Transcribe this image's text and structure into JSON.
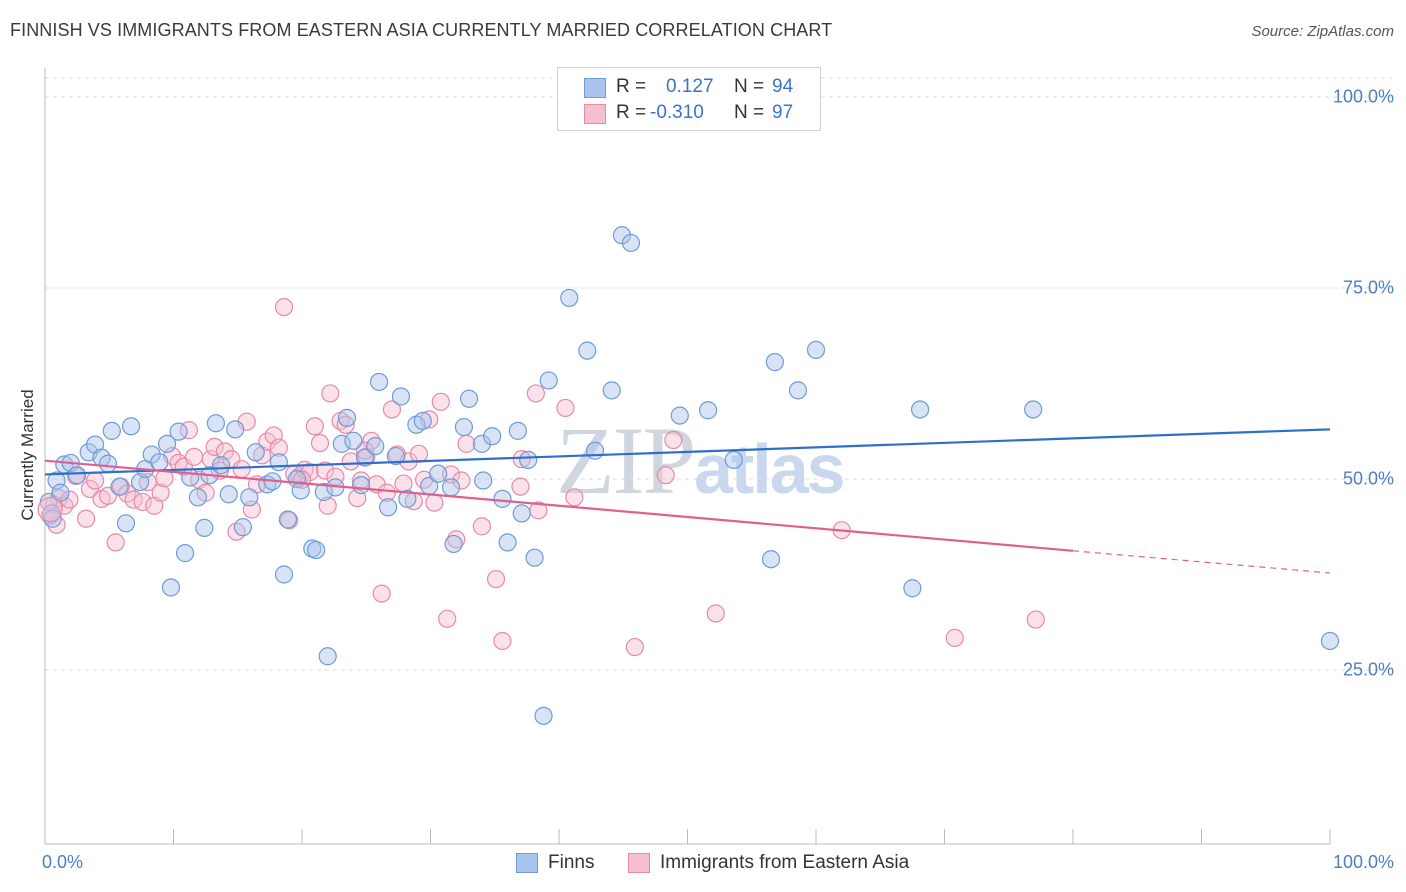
{
  "header": {
    "title": "FINNISH VS IMMIGRANTS FROM EASTERN ASIA CURRENTLY MARRIED CORRELATION CHART",
    "source": "Source: ZipAtlas.com"
  },
  "watermark": {
    "part1": "ZIP",
    "part2": "atlas"
  },
  "legend": {
    "rows": [
      {
        "r_label": "R =",
        "r_value": "0.127",
        "n_label": "N =",
        "n_value": "94"
      },
      {
        "r_label": "R =",
        "r_value": "-0.310",
        "n_label": "N =",
        "n_value": "97"
      }
    ]
  },
  "bottom_legend": {
    "finns": "Finns",
    "immigrants": "Immigrants from Eastern Asia"
  },
  "colors": {
    "finns_fill": "#a9c4ec",
    "finns_stroke": "#6f9bd8",
    "finns_line": "#2f6fcc",
    "imm_fill": "#f6bfd0",
    "imm_stroke": "#e68aa8",
    "imm_line": "#e0608d",
    "tick_text": "#4a7fc8",
    "grid": "#dcdcdc"
  },
  "chart_data": {
    "type": "scatter",
    "title": "FINNISH VS IMMIGRANTS FROM EASTERN ASIA CURRENTLY MARRIED CORRELATION CHART",
    "xlabel": "",
    "ylabel": "Currently Married",
    "xlim": [
      0,
      100
    ],
    "ylim": [
      0,
      103
    ],
    "x_tick_labels": [
      "0.0%",
      "100.0%"
    ],
    "y_ticks": [
      25,
      50,
      75,
      100
    ],
    "y_tick_labels": [
      "25.0%",
      "50.0%",
      "75.0%",
      "100.0%"
    ],
    "grid": true,
    "legend_position": "top-center",
    "series": [
      {
        "name": "Finns",
        "r": 0.127,
        "n": 94,
        "trend": {
          "x": [
            0,
            100
          ],
          "y": [
            50.6,
            56.5
          ]
        },
        "points": [
          [
            0.3,
            47.0
          ],
          [
            0.5,
            45.5
          ],
          [
            0.6,
            44.8
          ],
          [
            0.9,
            49.8
          ],
          [
            1.2,
            48.2
          ],
          [
            1.5,
            51.9
          ],
          [
            2.0,
            52.1
          ],
          [
            2.5,
            50.5
          ],
          [
            3.4,
            53.5
          ],
          [
            3.9,
            54.5
          ],
          [
            4.4,
            52.8
          ],
          [
            4.9,
            52.0
          ],
          [
            5.2,
            56.3
          ],
          [
            5.8,
            49.0
          ],
          [
            6.3,
            44.2
          ],
          [
            6.7,
            56.9
          ],
          [
            7.4,
            49.6
          ],
          [
            7.8,
            51.3
          ],
          [
            8.3,
            53.2
          ],
          [
            8.9,
            52.2
          ],
          [
            9.5,
            54.6
          ],
          [
            9.8,
            35.8
          ],
          [
            10.4,
            56.2
          ],
          [
            10.9,
            40.3
          ],
          [
            11.3,
            50.2
          ],
          [
            11.9,
            47.6
          ],
          [
            12.4,
            43.6
          ],
          [
            12.8,
            50.5
          ],
          [
            13.3,
            57.3
          ],
          [
            13.7,
            51.8
          ],
          [
            14.3,
            48.0
          ],
          [
            14.8,
            56.5
          ],
          [
            15.4,
            43.7
          ],
          [
            15.9,
            47.6
          ],
          [
            16.4,
            53.5
          ],
          [
            17.3,
            49.3
          ],
          [
            17.7,
            49.7
          ],
          [
            18.2,
            52.2
          ],
          [
            18.6,
            37.5
          ],
          [
            18.9,
            44.7
          ],
          [
            19.6,
            50.0
          ],
          [
            19.9,
            48.5
          ],
          [
            20.8,
            40.9
          ],
          [
            21.1,
            40.7
          ],
          [
            21.7,
            48.3
          ],
          [
            22.0,
            26.8
          ],
          [
            22.6,
            48.9
          ],
          [
            23.1,
            54.6
          ],
          [
            23.5,
            58.0
          ],
          [
            24.0,
            55.0
          ],
          [
            24.6,
            49.2
          ],
          [
            24.9,
            52.8
          ],
          [
            25.7,
            54.3
          ],
          [
            26.0,
            62.7
          ],
          [
            26.7,
            46.3
          ],
          [
            27.3,
            53.0
          ],
          [
            27.7,
            60.8
          ],
          [
            28.2,
            47.4
          ],
          [
            28.9,
            57.1
          ],
          [
            29.4,
            57.6
          ],
          [
            29.9,
            49.1
          ],
          [
            30.6,
            50.7
          ],
          [
            31.6,
            48.9
          ],
          [
            31.8,
            41.5
          ],
          [
            32.6,
            56.8
          ],
          [
            33.0,
            60.5
          ],
          [
            34.0,
            54.6
          ],
          [
            34.1,
            49.8
          ],
          [
            34.8,
            55.6
          ],
          [
            35.6,
            47.4
          ],
          [
            36.0,
            41.7
          ],
          [
            36.8,
            56.3
          ],
          [
            37.1,
            45.5
          ],
          [
            37.6,
            52.5
          ],
          [
            38.1,
            39.7
          ],
          [
            38.8,
            19.0
          ],
          [
            39.2,
            62.9
          ],
          [
            40.8,
            73.7
          ],
          [
            42.2,
            66.8
          ],
          [
            42.8,
            53.7
          ],
          [
            44.1,
            61.6
          ],
          [
            44.9,
            81.9
          ],
          [
            45.6,
            80.9
          ],
          [
            49.4,
            58.3
          ],
          [
            51.6,
            59.0
          ],
          [
            53.6,
            52.5
          ],
          [
            56.5,
            39.5
          ],
          [
            56.8,
            65.3
          ],
          [
            58.6,
            61.6
          ],
          [
            60.0,
            66.9
          ],
          [
            67.5,
            35.7
          ],
          [
            68.1,
            59.1
          ],
          [
            76.9,
            59.1
          ],
          [
            100.0,
            28.8
          ]
        ]
      },
      {
        "name": "Immigrants from Eastern Asia",
        "r": -0.31,
        "n": 97,
        "trend": {
          "x": [
            0,
            80,
            100
          ],
          "y": [
            52.4,
            40.6,
            37.7
          ]
        },
        "points": [
          [
            0.4,
            45.2
          ],
          [
            0.7,
            46.6
          ],
          [
            0.9,
            44.0
          ],
          [
            1.1,
            47.5
          ],
          [
            1.5,
            46.5
          ],
          [
            1.9,
            47.3
          ],
          [
            2.4,
            50.4
          ],
          [
            3.2,
            44.8
          ],
          [
            3.5,
            48.7
          ],
          [
            3.9,
            49.8
          ],
          [
            4.4,
            47.4
          ],
          [
            4.9,
            47.8
          ],
          [
            5.5,
            41.7
          ],
          [
            5.9,
            49.0
          ],
          [
            6.4,
            48.1
          ],
          [
            6.9,
            47.3
          ],
          [
            7.6,
            47.0
          ],
          [
            8.0,
            49.6
          ],
          [
            8.5,
            46.5
          ],
          [
            9.0,
            48.2
          ],
          [
            9.3,
            50.1
          ],
          [
            9.9,
            53.0
          ],
          [
            10.4,
            52.1
          ],
          [
            10.8,
            51.6
          ],
          [
            11.2,
            56.4
          ],
          [
            11.6,
            52.9
          ],
          [
            12.0,
            49.9
          ],
          [
            12.5,
            48.2
          ],
          [
            12.9,
            52.6
          ],
          [
            13.2,
            54.2
          ],
          [
            13.6,
            51.1
          ],
          [
            14.0,
            53.6
          ],
          [
            14.5,
            52.6
          ],
          [
            14.9,
            43.1
          ],
          [
            15.3,
            51.3
          ],
          [
            15.7,
            57.5
          ],
          [
            16.1,
            46.0
          ],
          [
            16.5,
            49.3
          ],
          [
            16.9,
            53.1
          ],
          [
            17.3,
            54.9
          ],
          [
            17.8,
            55.7
          ],
          [
            18.2,
            54.1
          ],
          [
            18.6,
            72.5
          ],
          [
            19.0,
            44.6
          ],
          [
            19.4,
            50.7
          ],
          [
            19.8,
            50.3
          ],
          [
            20.2,
            51.2
          ],
          [
            20.6,
            50.9
          ],
          [
            21.0,
            56.9
          ],
          [
            21.4,
            54.7
          ],
          [
            21.8,
            51.1
          ],
          [
            22.2,
            61.2
          ],
          [
            22.6,
            50.3
          ],
          [
            23.0,
            57.6
          ],
          [
            23.4,
            57.1
          ],
          [
            23.8,
            52.3
          ],
          [
            24.3,
            47.5
          ],
          [
            24.6,
            49.8
          ],
          [
            25.0,
            52.9
          ],
          [
            25.4,
            55.0
          ],
          [
            25.8,
            49.3
          ],
          [
            26.2,
            35.0
          ],
          [
            26.6,
            48.2
          ],
          [
            27.0,
            59.1
          ],
          [
            27.4,
            53.2
          ],
          [
            27.9,
            49.4
          ],
          [
            28.3,
            52.3
          ],
          [
            28.7,
            47.1
          ],
          [
            29.1,
            53.3
          ],
          [
            29.5,
            49.9
          ],
          [
            29.9,
            57.8
          ],
          [
            30.3,
            46.9
          ],
          [
            30.8,
            60.1
          ],
          [
            31.3,
            31.7
          ],
          [
            31.6,
            50.6
          ],
          [
            32.0,
            42.1
          ],
          [
            32.4,
            49.8
          ],
          [
            32.8,
            54.6
          ],
          [
            34.0,
            43.8
          ],
          [
            35.1,
            36.9
          ],
          [
            35.6,
            28.8
          ],
          [
            37.1,
            52.6
          ],
          [
            38.2,
            61.2
          ],
          [
            38.4,
            45.9
          ],
          [
            40.5,
            59.3
          ],
          [
            41.2,
            47.6
          ],
          [
            45.9,
            28.0
          ],
          [
            48.3,
            50.5
          ],
          [
            48.9,
            55.1
          ],
          [
            52.2,
            32.4
          ],
          [
            62.0,
            43.3
          ],
          [
            70.8,
            29.2
          ],
          [
            77.1,
            31.6
          ],
          [
            37.0,
            49.0
          ],
          [
            20.0,
            49.9
          ],
          [
            22.0,
            46.5
          ],
          [
            24.9,
            53.7
          ]
        ]
      }
    ]
  }
}
